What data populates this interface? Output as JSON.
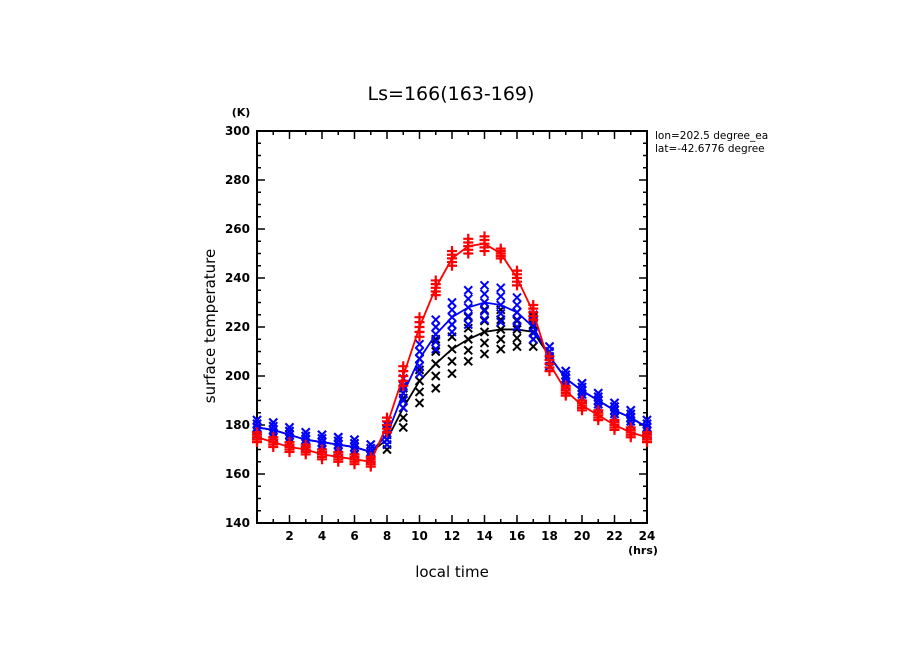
{
  "chart_data": {
    "type": "line",
    "title": "Ls=166(163-169)",
    "xlabel": "local time",
    "xunit": "(hrs)",
    "ylabel": "surface temperature",
    "yunit": "(K)",
    "xlim": [
      0,
      24
    ],
    "ylim": [
      140,
      300
    ],
    "xticks": [
      2,
      4,
      6,
      8,
      10,
      12,
      14,
      16,
      18,
      20,
      22,
      24
    ],
    "yticks": [
      140,
      160,
      180,
      200,
      220,
      240,
      260,
      280,
      300
    ],
    "grid": false,
    "annotations": [
      "lon=202.5 degree_ea",
      "lat=-42.6776 degree"
    ],
    "x": [
      0,
      1,
      2,
      3,
      4,
      5,
      6,
      7,
      8,
      9,
      10,
      11,
      12,
      13,
      14,
      15,
      16,
      17,
      18,
      19,
      20,
      21,
      22,
      23,
      24
    ],
    "series": [
      {
        "name": "black",
        "color": "#000000",
        "marker": "x",
        "values": [
          179,
          178,
          176,
          174,
          173,
          172,
          171,
          169,
          174,
          187,
          198,
          205,
          211,
          215,
          218,
          219,
          219,
          218,
          208,
          199,
          194,
          190,
          186,
          183,
          179
        ],
        "spread": [
          3,
          3,
          3,
          3,
          3,
          3,
          3,
          3,
          4,
          8,
          9,
          10,
          10,
          9,
          9,
          8,
          7,
          6,
          4,
          3,
          3,
          3,
          3,
          3,
          3
        ]
      },
      {
        "name": "blue",
        "color": "#0000ff",
        "marker": "x",
        "values": [
          179,
          178,
          176,
          174,
          173,
          172,
          171,
          169,
          176,
          193,
          207,
          217,
          224,
          228,
          230,
          229,
          226,
          220,
          208,
          199,
          194,
          190,
          186,
          183,
          179
        ],
        "spread": [
          3,
          3,
          3,
          3,
          3,
          3,
          3,
          3,
          4,
          6,
          6,
          6,
          6,
          7,
          7,
          7,
          6,
          5,
          4,
          3,
          3,
          3,
          3,
          3,
          3
        ]
      },
      {
        "name": "red",
        "color": "#ff0000",
        "marker": "+",
        "values": [
          175,
          173,
          171,
          170,
          168,
          167,
          166,
          165,
          180,
          200,
          220,
          236,
          248,
          253,
          254,
          250,
          240,
          226,
          205,
          194,
          188,
          184,
          180,
          177,
          175
        ],
        "spread": [
          2,
          2,
          2,
          2,
          2,
          2,
          2,
          2,
          3,
          4,
          4,
          3,
          3,
          3,
          3,
          2,
          3,
          3,
          3,
          2,
          2,
          2,
          2,
          2,
          2
        ]
      }
    ]
  }
}
